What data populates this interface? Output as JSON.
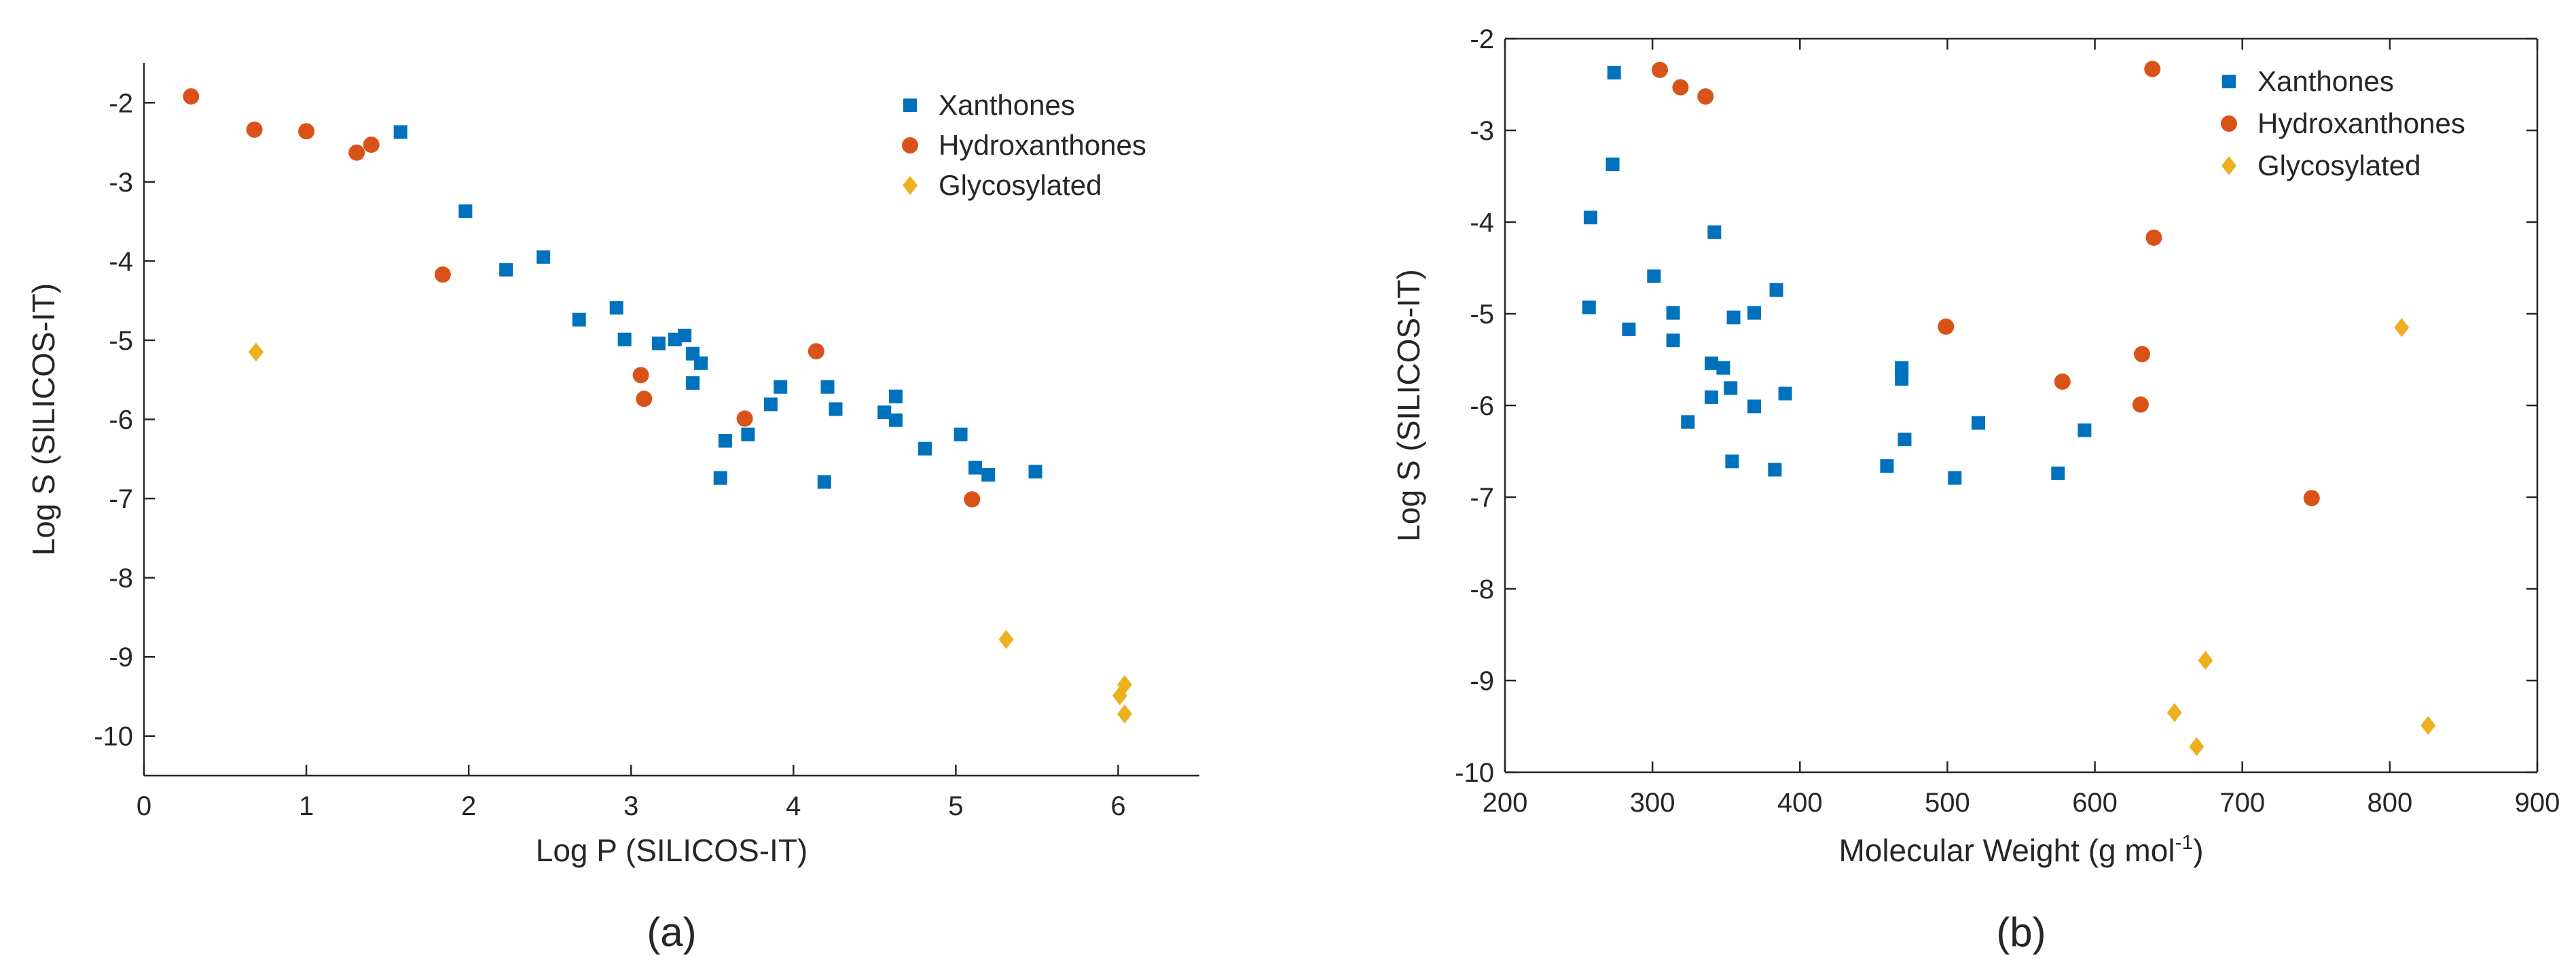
{
  "chart_data": [
    {
      "type": "scatter",
      "panel_label": "(a)",
      "title": "",
      "xlabel": "Log P (SILICOS-IT)",
      "ylabel": "Log S (SILICOS-IT)",
      "xlim": [
        0,
        6.5
      ],
      "ylim": [
        -10.5,
        -1.5
      ],
      "xticks": [
        0,
        1,
        2,
        3,
        4,
        5,
        6
      ],
      "yticks": [
        -10,
        -9,
        -8,
        -7,
        -6,
        -5,
        -4,
        -3,
        -2
      ],
      "grid": false,
      "legend": "top-right",
      "series": [
        {
          "name": "Xanthones",
          "marker": "square",
          "color": "#0072BD",
          "points": [
            [
              1.58,
              -2.37
            ],
            [
              1.98,
              -3.37
            ],
            [
              2.23,
              -4.11
            ],
            [
              2.46,
              -3.95
            ],
            [
              2.68,
              -4.74
            ],
            [
              2.91,
              -4.59
            ],
            [
              2.96,
              -4.99
            ],
            [
              3.17,
              -5.04
            ],
            [
              3.27,
              -4.99
            ],
            [
              3.33,
              -4.94
            ],
            [
              3.38,
              -5.17
            ],
            [
              3.43,
              -5.29
            ],
            [
              3.38,
              -5.54
            ],
            [
              3.55,
              -6.74
            ],
            [
              3.58,
              -6.27
            ],
            [
              3.72,
              -6.19
            ],
            [
              3.86,
              -5.81
            ],
            [
              3.92,
              -5.59
            ],
            [
              4.19,
              -6.79
            ],
            [
              4.21,
              -5.59
            ],
            [
              4.26,
              -5.87
            ],
            [
              4.56,
              -5.91
            ],
            [
              4.63,
              -5.71
            ],
            [
              4.63,
              -6.01
            ],
            [
              4.81,
              -6.37
            ],
            [
              5.03,
              -6.19
            ],
            [
              5.12,
              -6.61
            ],
            [
              5.2,
              -6.7
            ],
            [
              5.49,
              -6.66
            ]
          ]
        },
        {
          "name": "Hydroxanthones",
          "marker": "circle",
          "color": "#D95319",
          "points": [
            [
              0.29,
              -1.92
            ],
            [
              0.68,
              -2.34
            ],
            [
              1.0,
              -2.36
            ],
            [
              1.31,
              -2.63
            ],
            [
              1.4,
              -2.53
            ],
            [
              1.84,
              -4.17
            ],
            [
              3.06,
              -5.44
            ],
            [
              3.08,
              -5.74
            ],
            [
              3.7,
              -5.99
            ],
            [
              4.14,
              -5.14
            ],
            [
              5.1,
              -7.01
            ]
          ]
        },
        {
          "name": "Glycosylated",
          "marker": "diamond",
          "color": "#EDB120",
          "points": [
            [
              0.69,
              -5.15
            ],
            [
              5.31,
              -8.78
            ],
            [
              6.01,
              -9.49
            ],
            [
              6.04,
              -9.35
            ],
            [
              6.04,
              -9.72
            ]
          ]
        }
      ]
    },
    {
      "type": "scatter",
      "panel_label": "(b)",
      "title": "",
      "xlabel": "Molecular Weight (g mol",
      "xlabel_superscript": "-1",
      "xlabel_suffix": ")",
      "ylabel": "Log S (SILICOS-IT)",
      "xlim": [
        200,
        900
      ],
      "ylim": [
        -10,
        -2
      ],
      "xticks": [
        200,
        300,
        400,
        500,
        600,
        700,
        800,
        900
      ],
      "yticks": [
        -10,
        -9,
        -8,
        -7,
        -6,
        -5,
        -4,
        -3,
        -2
      ],
      "grid": false,
      "legend": "top-right",
      "series": [
        {
          "name": "Xanthones",
          "marker": "square",
          "color": "#0072BD",
          "points": [
            [
              274,
              -2.37
            ],
            [
              273,
              -3.37
            ],
            [
              258,
              -3.95
            ],
            [
              257,
              -4.93
            ],
            [
              284,
              -5.17
            ],
            [
              301,
              -4.59
            ],
            [
              314,
              -4.99
            ],
            [
              314,
              -5.29
            ],
            [
              324,
              -6.18
            ],
            [
              342,
              -4.11
            ],
            [
              340,
              -5.54
            ],
            [
              340,
              -5.91
            ],
            [
              348,
              -5.59
            ],
            [
              353,
              -5.81
            ],
            [
              355,
              -5.04
            ],
            [
              354,
              -6.61
            ],
            [
              369,
              -4.99
            ],
            [
              369,
              -6.01
            ],
            [
              384,
              -4.74
            ],
            [
              383,
              -6.7
            ],
            [
              390,
              -5.87
            ],
            [
              459,
              -6.66
            ],
            [
              469,
              -5.59
            ],
            [
              469,
              -5.71
            ],
            [
              471,
              -6.37
            ],
            [
              505,
              -6.79
            ],
            [
              521,
              -6.19
            ],
            [
              575,
              -6.74
            ],
            [
              593,
              -6.27
            ]
          ]
        },
        {
          "name": "Hydroxanthones",
          "marker": "circle",
          "color": "#D95319",
          "points": [
            [
              305,
              -2.34
            ],
            [
              319,
              -2.53
            ],
            [
              336,
              -2.63
            ],
            [
              499,
              -5.14
            ],
            [
              578,
              -5.74
            ],
            [
              632,
              -5.44
            ],
            [
              631,
              -5.99
            ],
            [
              639,
              -2.33
            ],
            [
              640,
              -4.17
            ],
            [
              747,
              -7.01
            ]
          ]
        },
        {
          "name": "Glycosylated",
          "marker": "diamond",
          "color": "#EDB120",
          "points": [
            [
              808,
              -5.15
            ],
            [
              675,
              -8.78
            ],
            [
              654,
              -9.35
            ],
            [
              669,
              -9.72
            ],
            [
              826,
              -9.49
            ]
          ]
        }
      ]
    }
  ]
}
